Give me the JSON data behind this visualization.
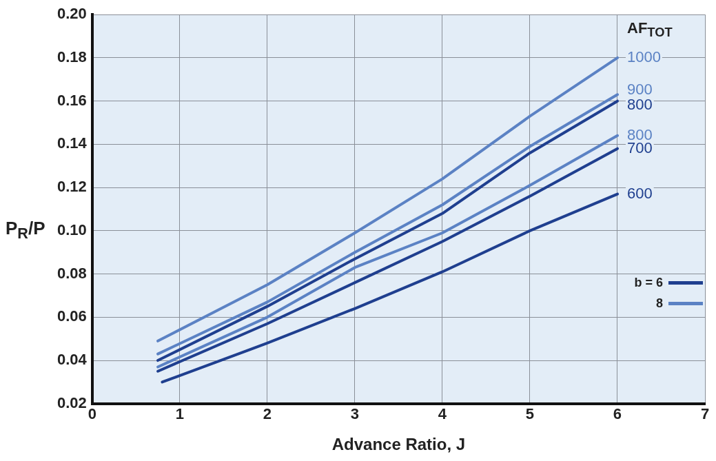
{
  "chart_data": {
    "type": "line",
    "xlabel": "Advance Ratio, J",
    "ylabel": "P$_{R}$/P",
    "legend_title": "AF$_{TOT}$",
    "xlim": [
      0,
      7
    ],
    "xticks": [
      0,
      1,
      2,
      3,
      4,
      5,
      6,
      7
    ],
    "ylim": [
      0.02,
      0.2
    ],
    "yticks": [
      0.02,
      0.04,
      0.06,
      0.08,
      {
        "value": 0.1,
        "label": "0.10"
      },
      0.12,
      0.14,
      0.16,
      0.18,
      {
        "value": 0.2,
        "label": "0.20"
      }
    ],
    "grid": true,
    "series": [
      {
        "name": "1000",
        "color": "#5b82c4",
        "x": [
          0.75,
          2,
          3,
          4,
          5,
          6
        ],
        "values": [
          0.049,
          0.075,
          0.099,
          0.124,
          0.153,
          0.18
        ]
      },
      {
        "name": "900",
        "color": "#5b82c4",
        "x": [
          0.75,
          2,
          3,
          4,
          5,
          6
        ],
        "values": [
          0.043,
          0.067,
          0.09,
          0.112,
          0.139,
          0.163
        ]
      },
      {
        "name": "800",
        "color": "#1f3f8f",
        "x": [
          0.75,
          2,
          3,
          4,
          5,
          6
        ],
        "values": [
          0.04,
          0.065,
          0.087,
          0.108,
          0.136,
          0.16
        ]
      },
      {
        "name": "800",
        "color": "#5b82c4",
        "x": [
          0.75,
          2,
          3,
          4,
          5,
          6
        ],
        "values": [
          0.037,
          0.06,
          0.083,
          0.099,
          0.121,
          0.144
        ]
      },
      {
        "name": "700",
        "color": "#1f3f8f",
        "x": [
          0.75,
          2,
          3,
          4,
          5,
          6
        ],
        "values": [
          0.035,
          0.057,
          0.076,
          0.095,
          0.116,
          0.138
        ]
      },
      {
        "name": "600",
        "color": "#1f3f8f",
        "x": [
          0.8,
          2,
          3,
          4,
          5,
          6
        ],
        "values": [
          0.03,
          0.048,
          0.064,
          0.081,
          0.1,
          0.117
        ]
      }
    ],
    "annotations": [
      "b = 6",
      "8"
    ]
  }
}
